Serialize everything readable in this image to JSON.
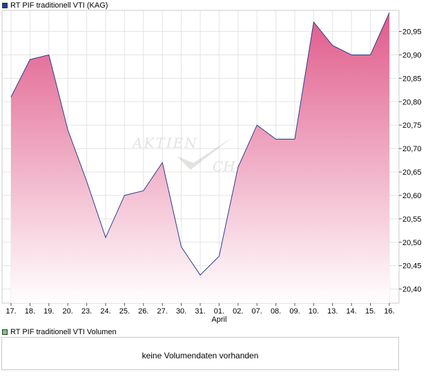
{
  "chart_data": {
    "type": "area",
    "series": [
      {
        "name": "RT PIF traditionell VTI (KAG)",
        "values": [
          20.81,
          20.89,
          20.9,
          20.74,
          20.63,
          20.51,
          20.6,
          20.61,
          20.67,
          20.49,
          20.43,
          20.47,
          20.66,
          20.75,
          20.72,
          20.72,
          20.97,
          20.92,
          20.9,
          20.9,
          20.99
        ]
      }
    ],
    "categories": [
      "17.",
      "18.",
      "19.",
      "20.",
      "23.",
      "24.",
      "25.",
      "26.",
      "27.",
      "30.",
      "31.",
      "01.",
      "02.",
      "07.",
      "08.",
      "09.",
      "10.",
      "13.",
      "14.",
      "15.",
      "16."
    ],
    "month_label": {
      "text": "April",
      "category_index": 11
    },
    "yticks": [
      "20,40",
      "20,45",
      "20,50",
      "20,55",
      "20,60",
      "20,65",
      "20,70",
      "20,75",
      "20,80",
      "20,85",
      "20,90",
      "20,95"
    ],
    "ylim": [
      20.37,
      20.995
    ],
    "grid": true,
    "colors": {
      "line": "#2d3a8c",
      "fill_top": "#e05a8a",
      "fill_bottom": "#ffffff",
      "legend_price": "#1f3f99",
      "legend_volume": "#7ac87a"
    }
  },
  "legend": {
    "price_label": "RT PIF traditionell VTI (KAG)",
    "volume_label": "RT PIF traditionell VTI Volumen"
  },
  "watermark": {
    "line1": "AKTIEN",
    "line2": "CH"
  },
  "volume_panel": {
    "message": "keine Volumendaten vorhanden"
  }
}
